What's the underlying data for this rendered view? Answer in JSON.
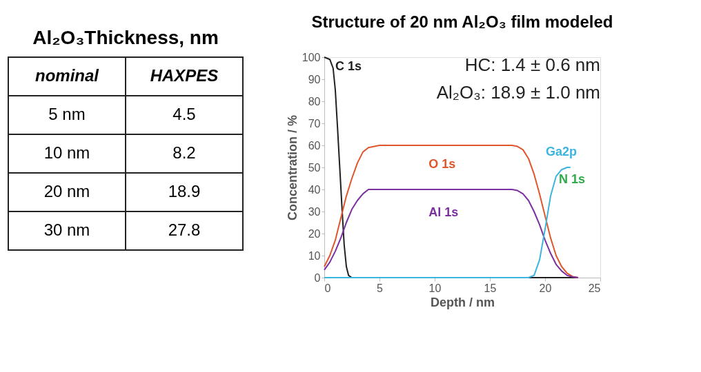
{
  "chart_data": [
    {
      "type": "other",
      "title": "Al₂O₃Thickness, nm",
      "annotations": [
        "nominal",
        "HAXPES",
        "5 nm",
        "4.5",
        "10 nm",
        "8.2",
        "20 nm",
        "18.9",
        "30 nm",
        "27.8"
      ]
    },
    {
      "type": "line",
      "title": "Structure of 20 nm Al₂O₃ film modeled",
      "xlabel": "Depth / nm",
      "ylabel": "Concentration / %",
      "xlim": [
        0,
        25
      ],
      "xticks": [
        0,
        5,
        10,
        15,
        20,
        25
      ],
      "ylim": [
        0,
        100
      ],
      "yticks": [
        0,
        10,
        20,
        30,
        40,
        50,
        60,
        70,
        80,
        90,
        100
      ],
      "grid": false,
      "legend": false,
      "annotations": [
        "HC:  1.4 ± 0.6 nm",
        "Al₂O₃: 18.9 ± 1.0 nm",
        "N 1s"
      ],
      "series": [
        {
          "name": "C 1s",
          "color": "#202020",
          "x": [
            0,
            0.5,
            0.8,
            1,
            1.2,
            1.4,
            1.6,
            1.8,
            2,
            2.2,
            2.5,
            5,
            10,
            15,
            20,
            23
          ],
          "values": [
            100,
            99,
            95,
            85,
            68,
            50,
            32,
            15,
            5,
            1,
            0,
            0,
            0,
            0,
            0,
            0
          ]
        },
        {
          "name": "O 1s",
          "color": "#e0562a",
          "x": [
            0,
            0.5,
            1,
            1.5,
            2,
            2.5,
            3,
            3.5,
            4,
            5,
            10,
            17,
            17.5,
            18,
            18.5,
            19,
            19.5,
            20,
            20.5,
            21,
            21.5,
            22,
            22.5,
            23
          ],
          "values": [
            5,
            10,
            17,
            27,
            37,
            45,
            52,
            57,
            59,
            60,
            60,
            60,
            59.5,
            58,
            54,
            47,
            38,
            28,
            18,
            10,
            5,
            2,
            0.5,
            0
          ]
        },
        {
          "name": "Al 1s",
          "color": "#7b2fa0",
          "x": [
            0,
            0.5,
            1,
            1.5,
            2,
            2.5,
            3,
            3.5,
            4,
            5,
            10,
            17,
            17.5,
            18,
            18.5,
            19,
            19.5,
            20,
            20.5,
            21,
            21.5,
            22,
            22.5,
            23
          ],
          "values": [
            3.5,
            7,
            12,
            18,
            25,
            31,
            35,
            38,
            40,
            40,
            40,
            40,
            39.5,
            38,
            35,
            30,
            24,
            17,
            11,
            6,
            3,
            1,
            0.3,
            0
          ]
        },
        {
          "name": "Ga2p",
          "color": "#3bb4e0",
          "x": [
            0,
            5,
            10,
            15,
            18.5,
            19,
            19.5,
            20,
            20.5,
            21,
            21.5,
            22,
            22.3
          ],
          "values": [
            0,
            0,
            0,
            0,
            0,
            1,
            8,
            22,
            37,
            46,
            49,
            50,
            50
          ]
        }
      ]
    }
  ]
}
